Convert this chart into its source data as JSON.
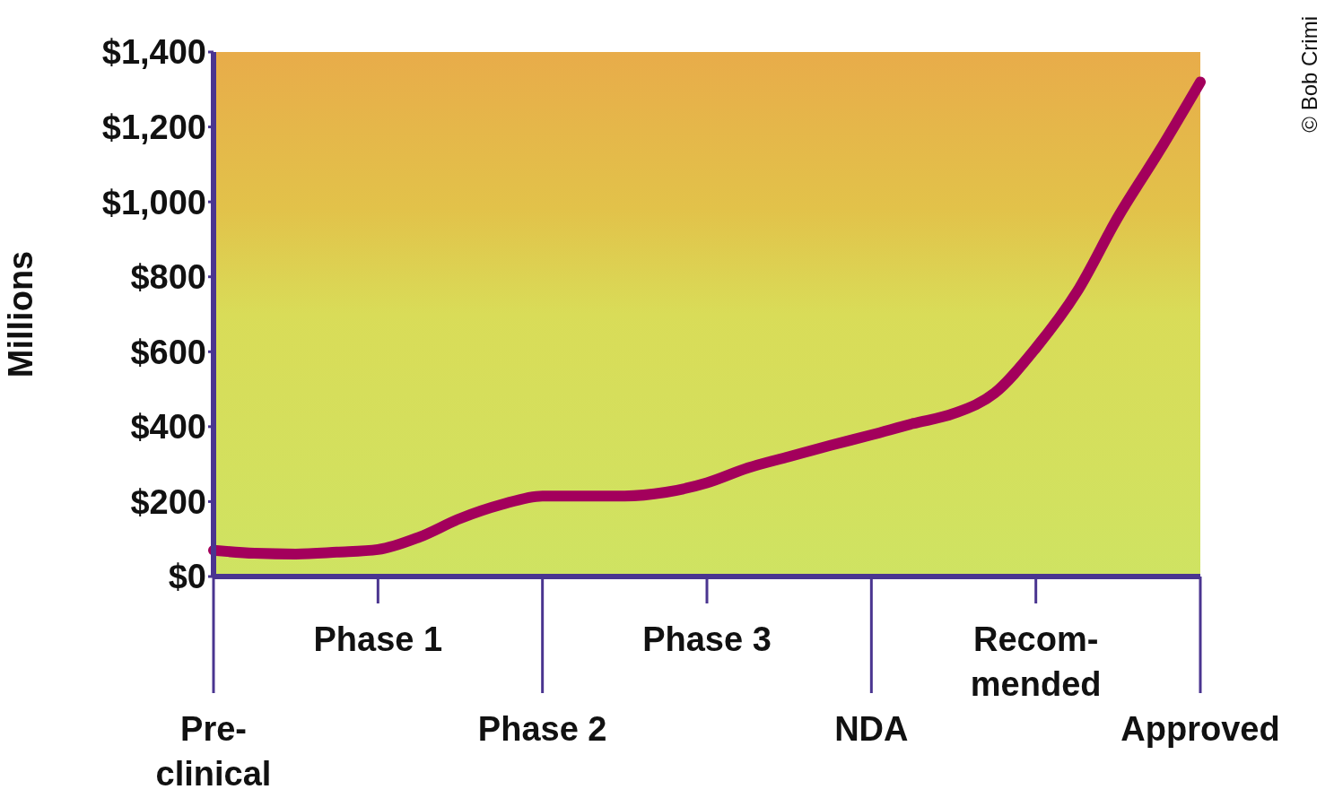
{
  "chart_data": {
    "type": "line",
    "ylabel": "Millions",
    "categories": [
      "Pre-\nclinical",
      null,
      null,
      null,
      "Phase 1",
      null,
      null,
      null,
      "Phase 2",
      null,
      null,
      null,
      "Phase 3",
      null,
      null,
      null,
      "NDA",
      null,
      null,
      null,
      "Recom-\nmended",
      null,
      null,
      null,
      "Approved"
    ],
    "series": [
      {
        "color": "#a3005c",
        "values": [
          70,
          62,
          60,
          65,
          72,
          105,
          155,
          192,
          215,
          215,
          215,
          225,
          250,
          290,
          320,
          350,
          378,
          408,
          435,
          490,
          610,
          760,
          960,
          1135,
          1320
        ]
      }
    ],
    "ylim": [
      0,
      1400
    ],
    "yticks": [
      {
        "value": 0,
        "label": "$0"
      },
      {
        "value": 200,
        "label": "$200"
      },
      {
        "value": 400,
        "label": "$400"
      },
      {
        "value": 600,
        "label": "$600"
      },
      {
        "value": 800,
        "label": "$800"
      },
      {
        "value": 1000,
        "label": "$1,000"
      },
      {
        "value": 1200,
        "label": "$1,200"
      },
      {
        "value": 1400,
        "label": "$1,400"
      }
    ],
    "grid": false,
    "legend": false,
    "marker": "none",
    "line_style": "solid",
    "annotations": [
      "© Bob Crimi"
    ]
  }
}
